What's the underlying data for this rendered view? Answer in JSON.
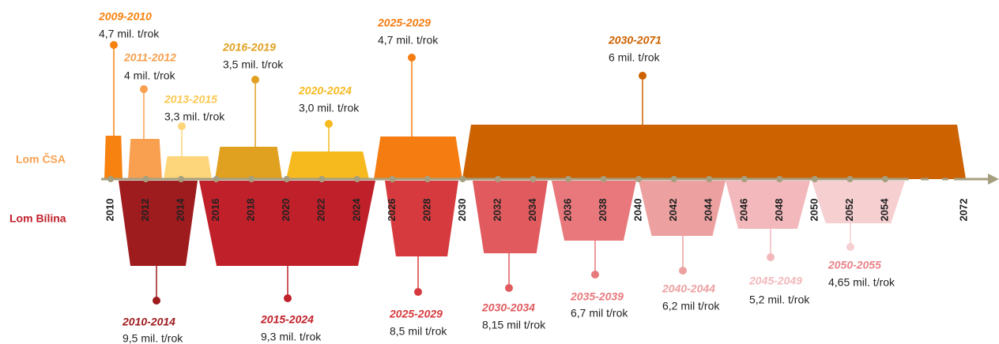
{
  "rows": {
    "csa": "Lom ČSA",
    "bilina": "Lom Bílina"
  },
  "axis": {
    "years": [
      "2010",
      "2012",
      "2014",
      "2016",
      "2018",
      "2020",
      "2022",
      "2024",
      "2026",
      "2028",
      "2030",
      "2032",
      "2034",
      "2036",
      "2038",
      "2040",
      "2042",
      "2044",
      "2046",
      "2048",
      "2050",
      "2052",
      "2054"
    ],
    "end": "2072"
  },
  "csa_periods": [
    {
      "period": "2009-2010",
      "rate": "4,7 mil. t/rok"
    },
    {
      "period": "2011-2012",
      "rate": "4 mil. t/rok"
    },
    {
      "period": "2013-2015",
      "rate": "3,3 mil. t/rok"
    },
    {
      "period": "2016-2019",
      "rate": "3,5 mil. t/rok"
    },
    {
      "period": "2020-2024",
      "rate": "3,0 mil. t/rok"
    },
    {
      "period": "2025-2029",
      "rate": "4,7 mil. t/rok"
    },
    {
      "period": "2030-2071",
      "rate": "6 mil. t/rok"
    }
  ],
  "bilina_periods": [
    {
      "period": "2010-2014",
      "rate": "9,5 mil. t/rok"
    },
    {
      "period": "2015-2024",
      "rate": "9,3 mil. t/rok"
    },
    {
      "period": "2025-2029",
      "rate": "8,5 mil t/rok"
    },
    {
      "period": "2030-2034",
      "rate": "8,15 mil t/rok"
    },
    {
      "period": "2035-2039",
      "rate": "6,7 mil t/rok"
    },
    {
      "period": "2040-2044",
      "rate": "6,2 mil t/rok"
    },
    {
      "period": "2045-2049",
      "rate": "5,2 mil. t/rok"
    },
    {
      "period": "2050-2055",
      "rate": "4,65 mil. t/rok"
    }
  ]
}
